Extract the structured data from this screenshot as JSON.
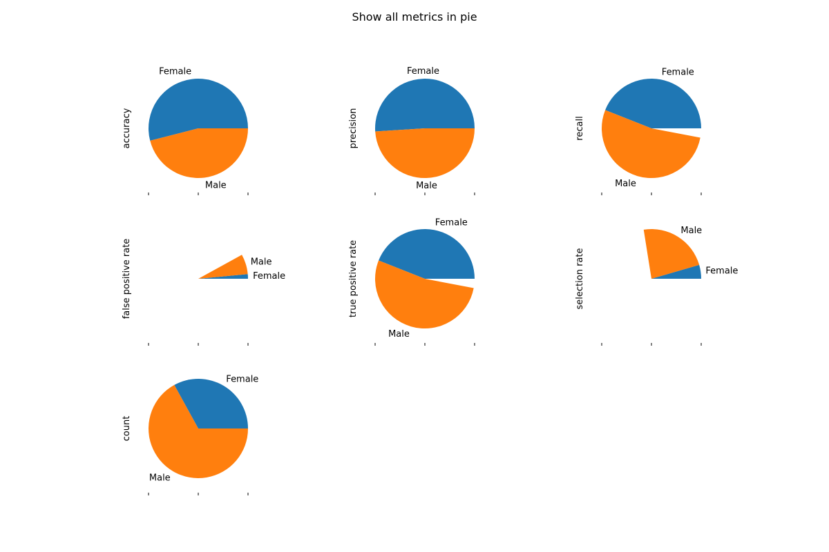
{
  "figure": {
    "title": "Show all metrics in pie"
  },
  "colors": {
    "Female": "#1f77b4",
    "Male": "#ff7f0e"
  },
  "chart_data": [
    {
      "type": "pie",
      "ylabel": "accuracy",
      "labels": [
        "Female",
        "Male"
      ],
      "values": [
        0.54,
        0.46
      ],
      "full_circle": true
    },
    {
      "type": "pie",
      "ylabel": "precision",
      "labels": [
        "Female",
        "Male"
      ],
      "values": [
        0.51,
        0.49
      ],
      "full_circle": true
    },
    {
      "type": "pie",
      "ylabel": "recall",
      "labels": [
        "Female",
        "Male"
      ],
      "values": [
        0.44,
        0.53
      ],
      "full_circle": false
    },
    {
      "type": "pie",
      "ylabel": "false positive rate",
      "labels": [
        "Female",
        "Male"
      ],
      "values": [
        0.015,
        0.065
      ],
      "full_circle": false
    },
    {
      "type": "pie",
      "ylabel": "true positive rate",
      "labels": [
        "Female",
        "Male"
      ],
      "values": [
        0.44,
        0.53
      ],
      "full_circle": false
    },
    {
      "type": "pie",
      "ylabel": "selection rate",
      "labels": [
        "Female",
        "Male"
      ],
      "values": [
        0.045,
        0.23
      ],
      "full_circle": false
    },
    {
      "type": "pie",
      "ylabel": "count",
      "labels": [
        "Female",
        "Male"
      ],
      "values": [
        0.33,
        0.67
      ],
      "full_circle": true
    }
  ]
}
